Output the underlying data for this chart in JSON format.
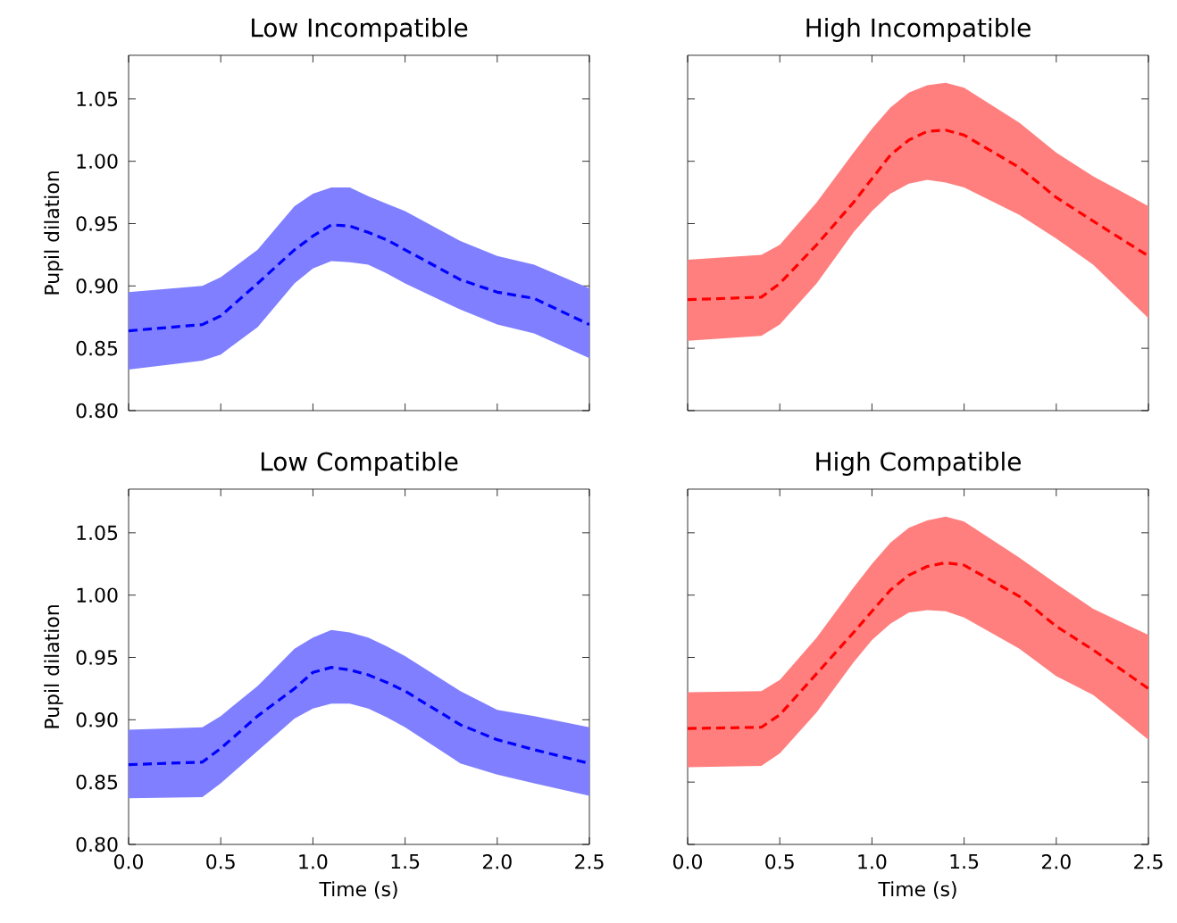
{
  "chart_data": [
    {
      "type": "line",
      "title": "Low Incompatible",
      "ylabel": "Pupil dilation",
      "tick_labels": "y",
      "x": [
        0,
        0.4,
        0.5,
        0.7,
        0.9,
        1.0,
        1.1,
        1.2,
        1.3,
        1.4,
        1.5,
        1.8,
        2.0,
        2.2,
        2.5
      ],
      "xlim": [
        0,
        2.5
      ],
      "ylim": [
        0.8,
        1.085
      ],
      "xticks": [
        0,
        0.5,
        1,
        1.5,
        2,
        2.5
      ],
      "yticks": [
        {
          "value": 0.8,
          "label": "0.80"
        },
        {
          "value": 0.85,
          "label": "0.85"
        },
        {
          "value": 0.9,
          "label": "0.90"
        },
        {
          "value": 0.95,
          "label": "0.95"
        },
        {
          "value": 1.0,
          "label": "1.00"
        },
        {
          "value": 1.05,
          "label": "1.05"
        }
      ],
      "series": [
        {
          "color": "#0000ff",
          "line_style": "dashed",
          "values": [
            0.864,
            0.869,
            0.876,
            0.902,
            0.929,
            0.94,
            0.949,
            0.948,
            0.943,
            0.937,
            0.929,
            0.905,
            0.895,
            0.89,
            0.869
          ],
          "lower": [
            0.833,
            0.84,
            0.845,
            0.867,
            0.902,
            0.914,
            0.92,
            0.919,
            0.917,
            0.91,
            0.902,
            0.881,
            0.869,
            0.862,
            0.842
          ],
          "upper": [
            0.895,
            0.9,
            0.907,
            0.929,
            0.964,
            0.974,
            0.979,
            0.979,
            0.972,
            0.966,
            0.96,
            0.936,
            0.924,
            0.917,
            0.898
          ]
        }
      ]
    },
    {
      "type": "line",
      "title": "High Incompatible",
      "tick_labels": false,
      "x": [
        0,
        0.4,
        0.5,
        0.7,
        0.9,
        1.0,
        1.1,
        1.2,
        1.3,
        1.4,
        1.5,
        1.8,
        2.0,
        2.2,
        2.5
      ],
      "xlim": [
        0,
        2.5
      ],
      "ylim": [
        0.8,
        1.085
      ],
      "xticks": [
        0,
        0.5,
        1,
        1.5,
        2,
        2.5
      ],
      "yticks": [
        0.8,
        0.85,
        0.9,
        0.95,
        1.0,
        1.05
      ],
      "series": [
        {
          "color": "#ff0000",
          "line_style": "dashed",
          "values": [
            0.889,
            0.891,
            0.902,
            0.933,
            0.967,
            0.986,
            1.005,
            1.017,
            1.024,
            1.025,
            1.021,
            0.995,
            0.971,
            0.952,
            0.924
          ],
          "lower": [
            0.856,
            0.86,
            0.869,
            0.902,
            0.943,
            0.96,
            0.974,
            0.982,
            0.985,
            0.983,
            0.979,
            0.957,
            0.938,
            0.917,
            0.874
          ],
          "upper": [
            0.921,
            0.925,
            0.933,
            0.967,
            1.007,
            1.026,
            1.043,
            1.055,
            1.061,
            1.063,
            1.059,
            1.031,
            1.007,
            0.988,
            0.964
          ]
        }
      ]
    },
    {
      "type": "line",
      "title": "Low Compatible",
      "ylabel": "Pupil dilation",
      "xlabel": "Time (s)",
      "x": [
        0,
        0.4,
        0.5,
        0.7,
        0.9,
        1.0,
        1.1,
        1.2,
        1.3,
        1.4,
        1.5,
        1.8,
        2.0,
        2.2,
        2.5
      ],
      "xlim": [
        0,
        2.5
      ],
      "ylim": [
        0.8,
        1.085
      ],
      "xticks": [
        {
          "value": 0,
          "label": "0.0"
        },
        {
          "value": 0.5,
          "label": "0.5"
        },
        {
          "value": 1,
          "label": "1.0"
        },
        {
          "value": 1.5,
          "label": "1.5"
        },
        {
          "value": 2,
          "label": "2.0"
        },
        {
          "value": 2.5,
          "label": "2.5"
        }
      ],
      "yticks": [
        {
          "value": 0.8,
          "label": "0.80"
        },
        {
          "value": 0.85,
          "label": "0.85"
        },
        {
          "value": 0.9,
          "label": "0.90"
        },
        {
          "value": 0.95,
          "label": "0.95"
        },
        {
          "value": 1.0,
          "label": "1.00"
        },
        {
          "value": 1.05,
          "label": "1.05"
        }
      ],
      "series": [
        {
          "color": "#0000ff",
          "line_style": "dashed",
          "values": [
            0.864,
            0.866,
            0.877,
            0.903,
            0.925,
            0.938,
            0.942,
            0.94,
            0.936,
            0.93,
            0.923,
            0.896,
            0.884,
            0.876,
            0.865
          ],
          "lower": [
            0.837,
            0.838,
            0.849,
            0.875,
            0.901,
            0.909,
            0.913,
            0.913,
            0.909,
            0.902,
            0.894,
            0.865,
            0.856,
            0.849,
            0.839
          ],
          "upper": [
            0.892,
            0.894,
            0.903,
            0.927,
            0.957,
            0.966,
            0.972,
            0.97,
            0.966,
            0.959,
            0.951,
            0.923,
            0.908,
            0.903,
            0.894
          ]
        }
      ]
    },
    {
      "type": "line",
      "title": "High Compatible",
      "xlabel": "Time (s)",
      "tick_labels": "x",
      "x": [
        0,
        0.4,
        0.5,
        0.7,
        0.9,
        1.0,
        1.1,
        1.2,
        1.3,
        1.4,
        1.5,
        1.8,
        2.0,
        2.2,
        2.5
      ],
      "xlim": [
        0,
        2.5
      ],
      "ylim": [
        0.8,
        1.085
      ],
      "xticks": [
        {
          "value": 0,
          "label": "0.0"
        },
        {
          "value": 0.5,
          "label": "0.5"
        },
        {
          "value": 1,
          "label": "1.0"
        },
        {
          "value": 1.5,
          "label": "1.5"
        },
        {
          "value": 2,
          "label": "2.0"
        },
        {
          "value": 2.5,
          "label": "2.5"
        }
      ],
      "yticks": [
        0.8,
        0.85,
        0.9,
        0.95,
        1.0,
        1.05
      ],
      "series": [
        {
          "color": "#ff0000",
          "line_style": "dashed",
          "values": [
            0.893,
            0.894,
            0.904,
            0.937,
            0.97,
            0.987,
            1.004,
            1.016,
            1.023,
            1.026,
            1.024,
            0.999,
            0.975,
            0.956,
            0.925
          ],
          "lower": [
            0.862,
            0.863,
            0.873,
            0.906,
            0.946,
            0.964,
            0.977,
            0.986,
            0.988,
            0.987,
            0.982,
            0.957,
            0.935,
            0.92,
            0.884
          ],
          "upper": [
            0.922,
            0.923,
            0.932,
            0.966,
            1.006,
            1.025,
            1.042,
            1.054,
            1.06,
            1.063,
            1.059,
            1.03,
            1.009,
            0.989,
            0.968
          ]
        }
      ]
    }
  ]
}
